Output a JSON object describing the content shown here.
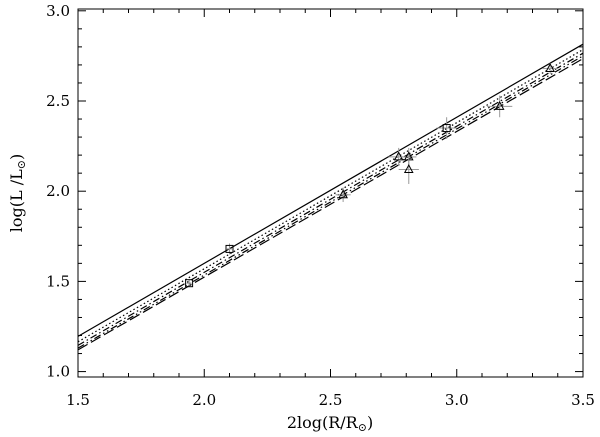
{
  "chart_data": {
    "type": "line",
    "xlabel": "2log(R/R",
    "xlabel_end": ")",
    "ylabel": "log(L /L",
    "ylabel_end": ")",
    "xlim": [
      1.5,
      3.5
    ],
    "ylim": [
      0.97,
      3.01
    ],
    "x_ticks": [
      1.5,
      2.0,
      2.5,
      3.0,
      3.5
    ],
    "y_ticks": [
      1.0,
      1.5,
      2.0,
      2.5,
      3.0
    ],
    "x_tick_labels": [
      "1.5",
      "2.0",
      "2.5",
      "3.0",
      "3.5"
    ],
    "y_tick_labels": [
      "1.0",
      "1.5",
      "2.0",
      "2.5",
      "3.0"
    ],
    "grid": false,
    "series": [
      {
        "style": "solid",
        "x": [
          1.5,
          3.5
        ],
        "y": [
          1.195,
          2.815
        ]
      },
      {
        "style": "dotted",
        "x": [
          1.5,
          3.5
        ],
        "y": [
          1.165,
          2.785
        ]
      },
      {
        "style": "dash-dot",
        "x": [
          1.5,
          3.5
        ],
        "y": [
          1.145,
          2.765
        ]
      },
      {
        "style": "dash-dot-dot",
        "x": [
          1.5,
          3.5
        ],
        "y": [
          1.13,
          2.75
        ]
      },
      {
        "style": "long-dash",
        "x": [
          1.5,
          3.5
        ],
        "y": [
          1.12,
          2.735
        ]
      }
    ],
    "points": [
      {
        "marker": "square",
        "x": 1.94,
        "y": 1.49,
        "xerr": 0.01,
        "yerr": 0.02
      },
      {
        "marker": "square",
        "x": 2.1,
        "y": 1.68,
        "xerr": 0.01,
        "yerr": 0.03
      },
      {
        "marker": "square",
        "x": 2.96,
        "y": 2.35,
        "xerr": 0.04,
        "yerr": 0.06
      },
      {
        "marker": "triangle",
        "x": 2.55,
        "y": 1.98,
        "xerr": 0.03,
        "yerr": 0.04
      },
      {
        "marker": "triangle",
        "x": 2.77,
        "y": 2.19,
        "xerr": 0.04,
        "yerr": 0.05
      },
      {
        "marker": "triangle",
        "x": 2.81,
        "y": 2.19,
        "xerr": 0.03,
        "yerr": 0.05
      },
      {
        "marker": "triangle",
        "x": 2.81,
        "y": 2.12,
        "xerr": 0.04,
        "yerr": 0.08
      },
      {
        "marker": "triangle",
        "x": 3.17,
        "y": 2.47,
        "xerr": 0.05,
        "yerr": 0.06
      },
      {
        "marker": "triangle",
        "x": 3.37,
        "y": 2.68,
        "xerr": 0.03,
        "yerr": 0.03
      }
    ]
  }
}
